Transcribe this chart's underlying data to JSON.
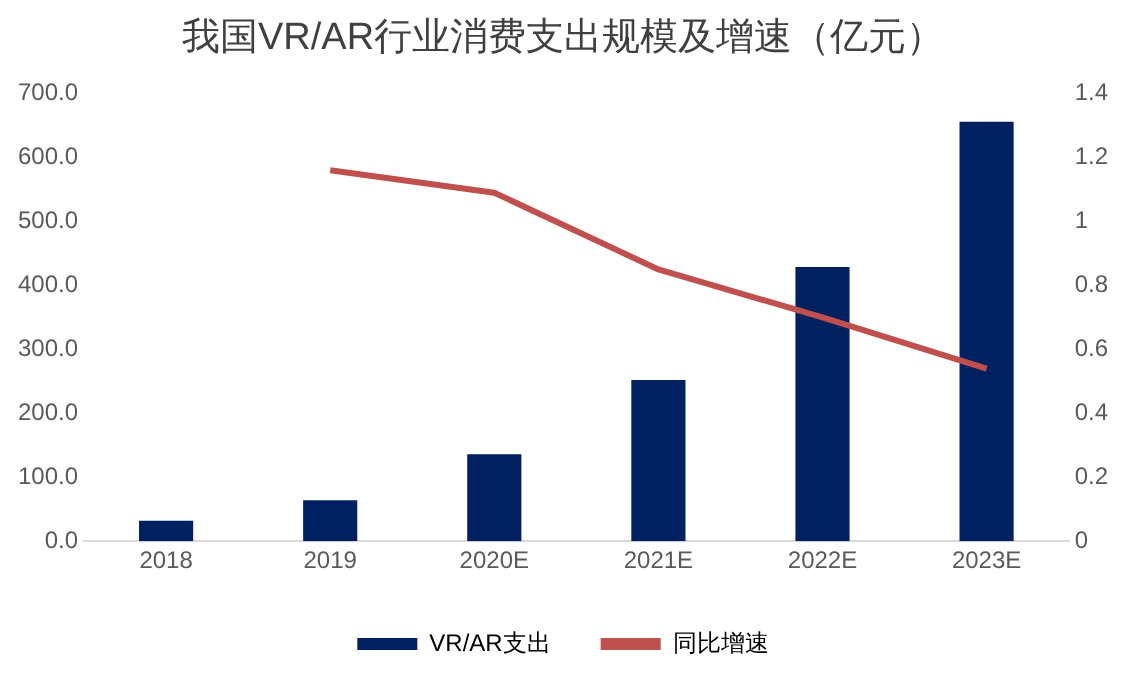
{
  "chart_data": {
    "type": "bar",
    "title": "我国VR/AR行业消费支出规模及增速（亿元）",
    "categories": [
      "2018",
      "2019",
      "2020E",
      "2021E",
      "2022E",
      "2023E"
    ],
    "series": [
      {
        "name": "VR/AR支出",
        "color": "#002060",
        "values": [
          32,
          64,
          136,
          252,
          429,
          656
        ]
      },
      {
        "name": "同比增速",
        "type": "line",
        "axis": "y2",
        "color": "#c0504d",
        "values": [
          null,
          1.16,
          1.09,
          0.85,
          0.7,
          0.54
        ]
      }
    ],
    "ylim": [
      0,
      700
    ],
    "yticks": [
      {
        "value": 0,
        "label": "0.0"
      },
      {
        "value": 100,
        "label": "100.0"
      },
      {
        "value": 200,
        "label": "200.0"
      },
      {
        "value": 300,
        "label": "300.0"
      },
      {
        "value": 400,
        "label": "400.0"
      },
      {
        "value": 500,
        "label": "500.0"
      },
      {
        "value": 600,
        "label": "600.0"
      },
      {
        "value": 700,
        "label": "700.0"
      }
    ],
    "y2lim": [
      0,
      1.4
    ],
    "y2ticks": [
      0,
      0.2,
      0.4,
      0.6,
      0.8,
      1,
      1.2,
      1.4
    ],
    "grid": false,
    "legend": "bottom",
    "marker": "none",
    "line_style": "solid"
  }
}
